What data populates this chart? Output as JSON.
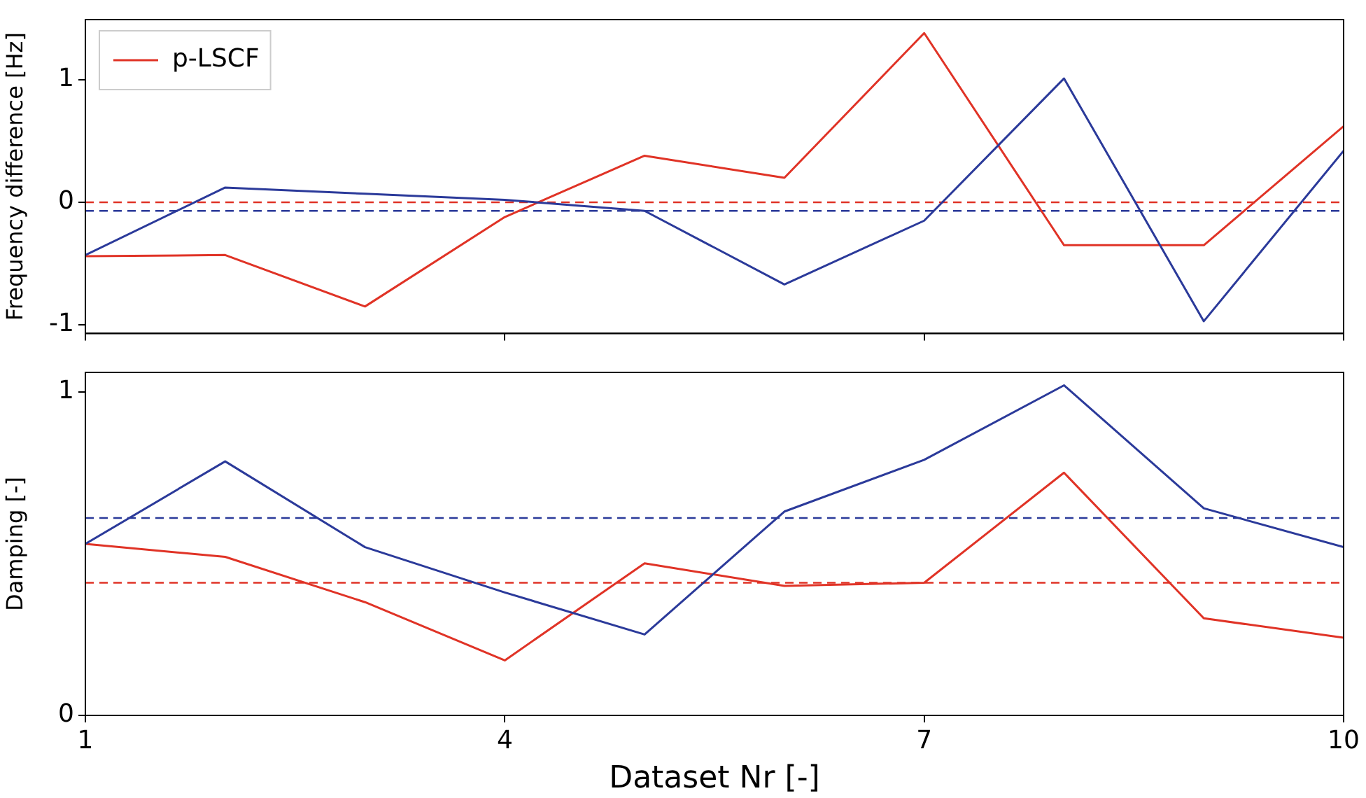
{
  "chart_data": [
    {
      "type": "line",
      "ylabel": "Frequency difference [Hz]",
      "x": [
        1,
        2,
        3,
        4,
        5,
        6,
        7,
        8,
        9,
        10
      ],
      "xlim": [
        1,
        10
      ],
      "xticks": [
        1,
        4,
        7,
        10
      ],
      "ylim": [
        -1.07,
        1.49
      ],
      "yticks": [
        -1,
        0,
        1
      ],
      "tick_labels": "y",
      "grid": false,
      "legend": "top left",
      "marker": "none",
      "series": [
        {
          "color": "#2b3a9a",
          "values": [
            -0.43,
            0.12,
            0.07,
            0.02,
            -0.07,
            -0.67,
            -0.15,
            1.01,
            -0.97,
            0.42
          ]
        },
        {
          "name": "p-LSCF",
          "color": "#e03326",
          "values": [
            -0.44,
            -0.43,
            -0.85,
            -0.12,
            0.38,
            0.2,
            1.38,
            -0.35,
            -0.35,
            0.62
          ]
        }
      ],
      "ref_lines": [
        {
          "axis": "y",
          "value": 0,
          "color": "#e03326",
          "line_style": "dashed"
        },
        {
          "axis": "y",
          "value": -0.07,
          "color": "#2b3a9a",
          "line_style": "dashed"
        }
      ]
    },
    {
      "type": "line",
      "ylabel": "Damping [-]",
      "xlabel": "Dataset Nr [-]",
      "x": [
        1,
        2,
        3,
        4,
        5,
        6,
        7,
        8,
        9,
        10
      ],
      "xlim": [
        1,
        10
      ],
      "xticks": [
        1,
        4,
        7,
        10
      ],
      "ylim": [
        0,
        1.06
      ],
      "yticks": [
        0,
        1
      ],
      "grid": false,
      "legend": false,
      "marker": "none",
      "series": [
        {
          "color": "#2b3a9a",
          "values": [
            0.53,
            0.785,
            0.52,
            0.38,
            0.25,
            0.63,
            0.79,
            1.02,
            0.64,
            0.52
          ]
        },
        {
          "color": "#e03326",
          "values": [
            0.53,
            0.49,
            0.35,
            0.17,
            0.47,
            0.4,
            0.41,
            0.75,
            0.3,
            0.24
          ]
        }
      ],
      "ref_lines": [
        {
          "axis": "y",
          "value": 0.61,
          "color": "#2b3a9a",
          "line_style": "dashed"
        },
        {
          "axis": "y",
          "value": 0.41,
          "color": "#e03326",
          "line_style": "dashed"
        }
      ]
    }
  ]
}
